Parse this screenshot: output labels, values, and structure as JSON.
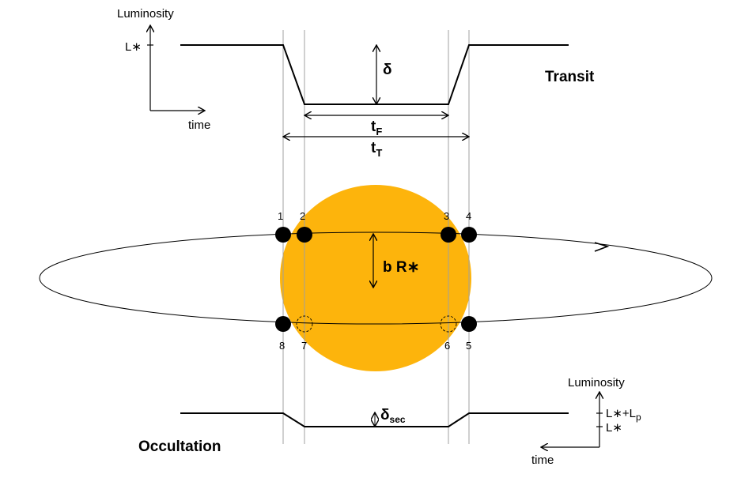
{
  "transit": {
    "title": "Transit",
    "axis_y": "Luminosity",
    "axis_x": "time",
    "level_label": "L∗",
    "depth_label": "δ",
    "flat_label_main": "t",
    "flat_label_sub": "F",
    "total_label_main": "t",
    "total_label_sub": "T"
  },
  "orbit": {
    "impact_label": "b R∗",
    "contact_points": [
      "1",
      "2",
      "3",
      "4",
      "5",
      "6",
      "7",
      "8"
    ]
  },
  "occultation": {
    "title": "Occultation",
    "axis_y": "Luminosity",
    "axis_x": "time",
    "level_upper_main": "L∗+L",
    "level_upper_sub": "p",
    "level_lower": "L∗",
    "depth_main": "δ",
    "depth_sub": "sec"
  },
  "colors": {
    "star": "#FDB40C",
    "planet": "#000000",
    "line": "#000000",
    "guide": "#9a9a9a"
  }
}
